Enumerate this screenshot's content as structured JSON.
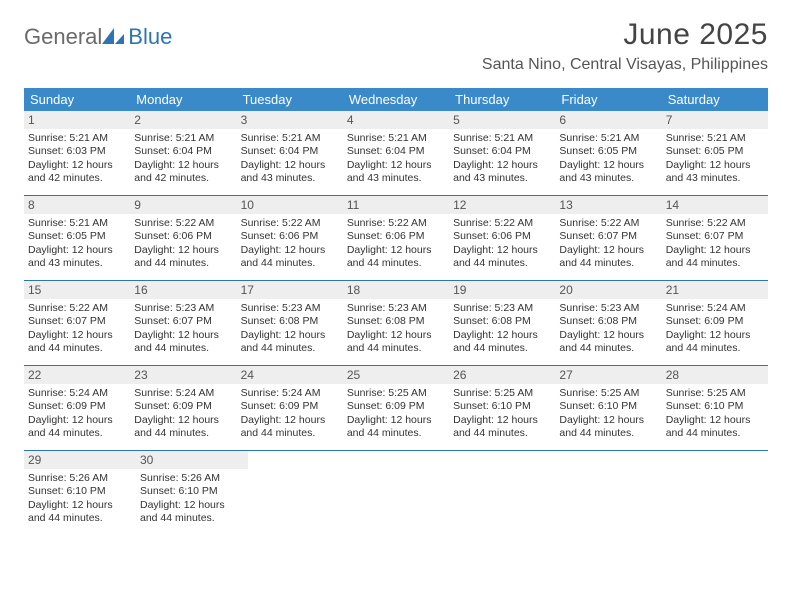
{
  "brand": {
    "general": "General",
    "blue": "Blue"
  },
  "title": {
    "month": "June 2025",
    "location": "Santa Nino, Central Visayas, Philippines"
  },
  "colors": {
    "header_bg": "#3a8ac9",
    "header_text": "#ffffff",
    "accent": "#2e74b5",
    "daynum_bg": "#eeeeee",
    "text": "#333333"
  },
  "weekdays": [
    "Sunday",
    "Monday",
    "Tuesday",
    "Wednesday",
    "Thursday",
    "Friday",
    "Saturday"
  ],
  "days": [
    {
      "n": "1",
      "sr": "5:21 AM",
      "ss": "6:03 PM",
      "dl": "12 hours and 42 minutes."
    },
    {
      "n": "2",
      "sr": "5:21 AM",
      "ss": "6:04 PM",
      "dl": "12 hours and 42 minutes."
    },
    {
      "n": "3",
      "sr": "5:21 AM",
      "ss": "6:04 PM",
      "dl": "12 hours and 43 minutes."
    },
    {
      "n": "4",
      "sr": "5:21 AM",
      "ss": "6:04 PM",
      "dl": "12 hours and 43 minutes."
    },
    {
      "n": "5",
      "sr": "5:21 AM",
      "ss": "6:04 PM",
      "dl": "12 hours and 43 minutes."
    },
    {
      "n": "6",
      "sr": "5:21 AM",
      "ss": "6:05 PM",
      "dl": "12 hours and 43 minutes."
    },
    {
      "n": "7",
      "sr": "5:21 AM",
      "ss": "6:05 PM",
      "dl": "12 hours and 43 minutes."
    },
    {
      "n": "8",
      "sr": "5:21 AM",
      "ss": "6:05 PM",
      "dl": "12 hours and 43 minutes."
    },
    {
      "n": "9",
      "sr": "5:22 AM",
      "ss": "6:06 PM",
      "dl": "12 hours and 44 minutes."
    },
    {
      "n": "10",
      "sr": "5:22 AM",
      "ss": "6:06 PM",
      "dl": "12 hours and 44 minutes."
    },
    {
      "n": "11",
      "sr": "5:22 AM",
      "ss": "6:06 PM",
      "dl": "12 hours and 44 minutes."
    },
    {
      "n": "12",
      "sr": "5:22 AM",
      "ss": "6:06 PM",
      "dl": "12 hours and 44 minutes."
    },
    {
      "n": "13",
      "sr": "5:22 AM",
      "ss": "6:07 PM",
      "dl": "12 hours and 44 minutes."
    },
    {
      "n": "14",
      "sr": "5:22 AM",
      "ss": "6:07 PM",
      "dl": "12 hours and 44 minutes."
    },
    {
      "n": "15",
      "sr": "5:22 AM",
      "ss": "6:07 PM",
      "dl": "12 hours and 44 minutes."
    },
    {
      "n": "16",
      "sr": "5:23 AM",
      "ss": "6:07 PM",
      "dl": "12 hours and 44 minutes."
    },
    {
      "n": "17",
      "sr": "5:23 AM",
      "ss": "6:08 PM",
      "dl": "12 hours and 44 minutes."
    },
    {
      "n": "18",
      "sr": "5:23 AM",
      "ss": "6:08 PM",
      "dl": "12 hours and 44 minutes."
    },
    {
      "n": "19",
      "sr": "5:23 AM",
      "ss": "6:08 PM",
      "dl": "12 hours and 44 minutes."
    },
    {
      "n": "20",
      "sr": "5:23 AM",
      "ss": "6:08 PM",
      "dl": "12 hours and 44 minutes."
    },
    {
      "n": "21",
      "sr": "5:24 AM",
      "ss": "6:09 PM",
      "dl": "12 hours and 44 minutes."
    },
    {
      "n": "22",
      "sr": "5:24 AM",
      "ss": "6:09 PM",
      "dl": "12 hours and 44 minutes."
    },
    {
      "n": "23",
      "sr": "5:24 AM",
      "ss": "6:09 PM",
      "dl": "12 hours and 44 minutes."
    },
    {
      "n": "24",
      "sr": "5:24 AM",
      "ss": "6:09 PM",
      "dl": "12 hours and 44 minutes."
    },
    {
      "n": "25",
      "sr": "5:25 AM",
      "ss": "6:09 PM",
      "dl": "12 hours and 44 minutes."
    },
    {
      "n": "26",
      "sr": "5:25 AM",
      "ss": "6:10 PM",
      "dl": "12 hours and 44 minutes."
    },
    {
      "n": "27",
      "sr": "5:25 AM",
      "ss": "6:10 PM",
      "dl": "12 hours and 44 minutes."
    },
    {
      "n": "28",
      "sr": "5:25 AM",
      "ss": "6:10 PM",
      "dl": "12 hours and 44 minutes."
    },
    {
      "n": "29",
      "sr": "5:26 AM",
      "ss": "6:10 PM",
      "dl": "12 hours and 44 minutes."
    },
    {
      "n": "30",
      "sr": "5:26 AM",
      "ss": "6:10 PM",
      "dl": "12 hours and 44 minutes."
    }
  ],
  "labels": {
    "sunrise": "Sunrise:",
    "sunset": "Sunset:",
    "daylight": "Daylight:"
  },
  "layout": {
    "columns": 7,
    "rows": 5,
    "trailing_empty": 5
  }
}
